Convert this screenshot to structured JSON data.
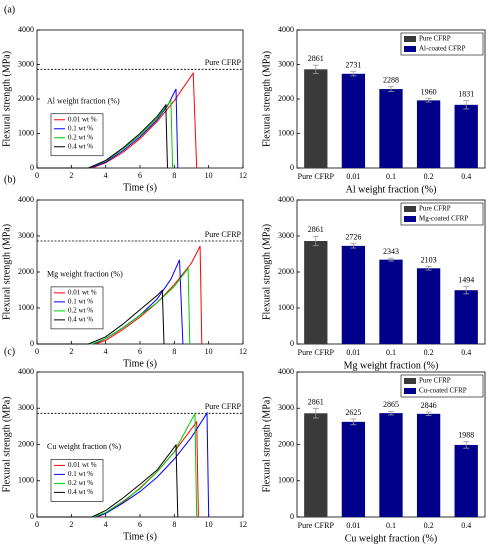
{
  "chart_data": [
    {
      "type": "line",
      "label": "(a)",
      "xlabel": "Time (s)",
      "ylabel": "Flexural strength (MPa)",
      "annotation": "Al weight fraction (%)",
      "reference": {
        "value": 2861,
        "label": "Pure CFRP"
      },
      "xlim": [
        0,
        12
      ],
      "xticks": [
        0,
        2,
        4,
        6,
        8,
        10,
        12
      ],
      "ylim": [
        0,
        4000
      ],
      "yticks": [
        0,
        1000,
        2000,
        3000,
        4000
      ],
      "series": [
        {
          "name": "0.01 wt %",
          "color": "#ff0000",
          "x": [
            0,
            3.2,
            4,
            5,
            6,
            7,
            8,
            9.1,
            9.3
          ],
          "values": [
            0,
            0,
            150,
            450,
            850,
            1350,
            1950,
            2750,
            0
          ]
        },
        {
          "name": "0.1 wt %",
          "color": "#0000ff",
          "x": [
            0,
            3.1,
            4,
            5,
            6,
            7,
            7.6,
            8.1,
            8.2
          ],
          "values": [
            0,
            0,
            170,
            500,
            900,
            1400,
            1800,
            2290,
            0
          ]
        },
        {
          "name": "0.2 wt %",
          "color": "#00cc00",
          "x": [
            0,
            3,
            4,
            5,
            6,
            7,
            7.8,
            7.9
          ],
          "values": [
            0,
            0,
            200,
            550,
            950,
            1450,
            1960,
            0
          ]
        },
        {
          "name": "0.4 wt %",
          "color": "#000000",
          "x": [
            0,
            3,
            4,
            5,
            6,
            7,
            7.5,
            7.6
          ],
          "values": [
            0,
            0,
            220,
            580,
            1000,
            1500,
            1830,
            0
          ]
        }
      ]
    },
    {
      "type": "bar",
      "xlabel": "Al weight fraction (%)",
      "ylabel": "Flexural strength (MPa)",
      "categories": [
        "Pure CFRP",
        "0.01",
        "0.1",
        "0.2",
        "0.4"
      ],
      "ylim": [
        0,
        4000
      ],
      "yticks": [
        0,
        1000,
        2000,
        3000,
        4000
      ],
      "series": [
        {
          "name": "Pure CFRP",
          "color": "#3a3a3a",
          "values": [
            2861,
            null,
            null,
            null,
            null
          ],
          "errors": [
            120,
            null,
            null,
            null,
            null
          ]
        },
        {
          "name": "Al-coated CFRP",
          "color": "#00008b",
          "values": [
            null,
            2731,
            2288,
            1960,
            1831
          ],
          "errors": [
            null,
            60,
            70,
            50,
            120
          ]
        }
      ]
    },
    {
      "type": "line",
      "label": "(b)",
      "xlabel": "Time (s)",
      "ylabel": "Flexural strength (MPa)",
      "annotation": "Mg weight fraction (%)",
      "reference": {
        "value": 2861,
        "label": "Pure CFRP"
      },
      "xlim": [
        0,
        12
      ],
      "xticks": [
        0,
        2,
        4,
        6,
        8,
        10,
        12
      ],
      "ylim": [
        0,
        4000
      ],
      "yticks": [
        0,
        1000,
        2000,
        3000,
        4000
      ],
      "series": [
        {
          "name": "0.01 wt %",
          "color": "#ff0000",
          "x": [
            0,
            3.4,
            4,
            5,
            6,
            7,
            8,
            9,
            9.5,
            9.6
          ],
          "values": [
            0,
            0,
            100,
            400,
            750,
            1150,
            1650,
            2250,
            2720,
            0
          ]
        },
        {
          "name": "0.1 wt %",
          "color": "#0000ff",
          "x": [
            0,
            3.3,
            4,
            5,
            6,
            7,
            7.8,
            8.3,
            8.5
          ],
          "values": [
            0,
            0,
            150,
            450,
            800,
            1250,
            1800,
            2340,
            0
          ]
        },
        {
          "name": "0.2 wt %",
          "color": "#00cc00",
          "x": [
            0,
            3.2,
            4,
            5,
            6,
            7,
            8,
            8.8,
            8.9
          ],
          "values": [
            0,
            0,
            150,
            450,
            800,
            1150,
            1600,
            2100,
            0
          ]
        },
        {
          "name": "0.4 wt %",
          "color": "#000000",
          "x": [
            0,
            3,
            4,
            5,
            6,
            7,
            7.3,
            7.4
          ],
          "values": [
            0,
            0,
            200,
            550,
            950,
            1350,
            1490,
            0
          ]
        }
      ]
    },
    {
      "type": "bar",
      "xlabel": "Mg weight fraction (%)",
      "ylabel": "Flexural strength (MPa)",
      "categories": [
        "Pure CFRP",
        "0.01",
        "0.1",
        "0.2",
        "0.4"
      ],
      "ylim": [
        0,
        4000
      ],
      "yticks": [
        0,
        1000,
        2000,
        3000,
        4000
      ],
      "series": [
        {
          "name": "Pure CFRP",
          "color": "#3a3a3a",
          "values": [
            2861,
            null,
            null,
            null,
            null
          ],
          "errors": [
            130,
            null,
            null,
            null,
            null
          ]
        },
        {
          "name": "Mg-coated CFRP",
          "color": "#00008b",
          "values": [
            null,
            2726,
            2343,
            2103,
            1494
          ],
          "errors": [
            null,
            60,
            40,
            50,
            100
          ]
        }
      ]
    },
    {
      "type": "line",
      "label": "(c)",
      "xlabel": "Time (s)",
      "ylabel": "Flexural strength (MPa)",
      "annotation": "Cu weight fraction (%)",
      "reference": {
        "value": 2861,
        "label": "Pure CFRP"
      },
      "xlim": [
        0,
        12
      ],
      "xticks": [
        0,
        2,
        4,
        6,
        8,
        10,
        12
      ],
      "ylim": [
        0,
        4000
      ],
      "yticks": [
        0,
        1000,
        2000,
        3000,
        4000
      ],
      "series": [
        {
          "name": "0.01 wt %",
          "color": "#ff0000",
          "x": [
            0,
            3.5,
            4,
            5,
            6,
            7,
            8,
            9.3,
            9.4
          ],
          "values": [
            0,
            0,
            100,
            400,
            800,
            1250,
            1800,
            2625,
            0
          ]
        },
        {
          "name": "0.1 wt %",
          "color": "#0000ff",
          "x": [
            0,
            3.4,
            4,
            5,
            6,
            7,
            8,
            9,
            9.9,
            10
          ],
          "values": [
            0,
            0,
            100,
            380,
            700,
            1100,
            1600,
            2200,
            2865,
            0
          ]
        },
        {
          "name": "0.2 wt %",
          "color": "#00cc00",
          "x": [
            0,
            3.3,
            4,
            5,
            6,
            7,
            8,
            9.2,
            9.3
          ],
          "values": [
            0,
            0,
            120,
            430,
            780,
            1250,
            1800,
            2846,
            0
          ]
        },
        {
          "name": "0.4 wt %",
          "color": "#000000",
          "x": [
            0,
            3.2,
            4,
            5,
            6,
            7,
            8.1,
            8.2
          ],
          "values": [
            0,
            0,
            180,
            520,
            900,
            1300,
            1988,
            0
          ]
        }
      ]
    },
    {
      "type": "bar",
      "xlabel": "Cu weight fraction (%)",
      "ylabel": "Flexural strength (MPa)",
      "categories": [
        "Pure CFRP",
        "0.01",
        "0.1",
        "0.2",
        "0.4"
      ],
      "ylim": [
        0,
        4000
      ],
      "yticks": [
        0,
        1000,
        2000,
        3000,
        4000
      ],
      "series": [
        {
          "name": "Pure CFRP",
          "color": "#3a3a3a",
          "values": [
            2861,
            null,
            null,
            null,
            null
          ],
          "errors": [
            130,
            null,
            null,
            null,
            null
          ]
        },
        {
          "name": "Cu-coated CFRP",
          "color": "#00008b",
          "values": [
            null,
            2625,
            2865,
            2846,
            1988
          ],
          "errors": [
            null,
            80,
            50,
            50,
            90
          ]
        }
      ]
    }
  ]
}
